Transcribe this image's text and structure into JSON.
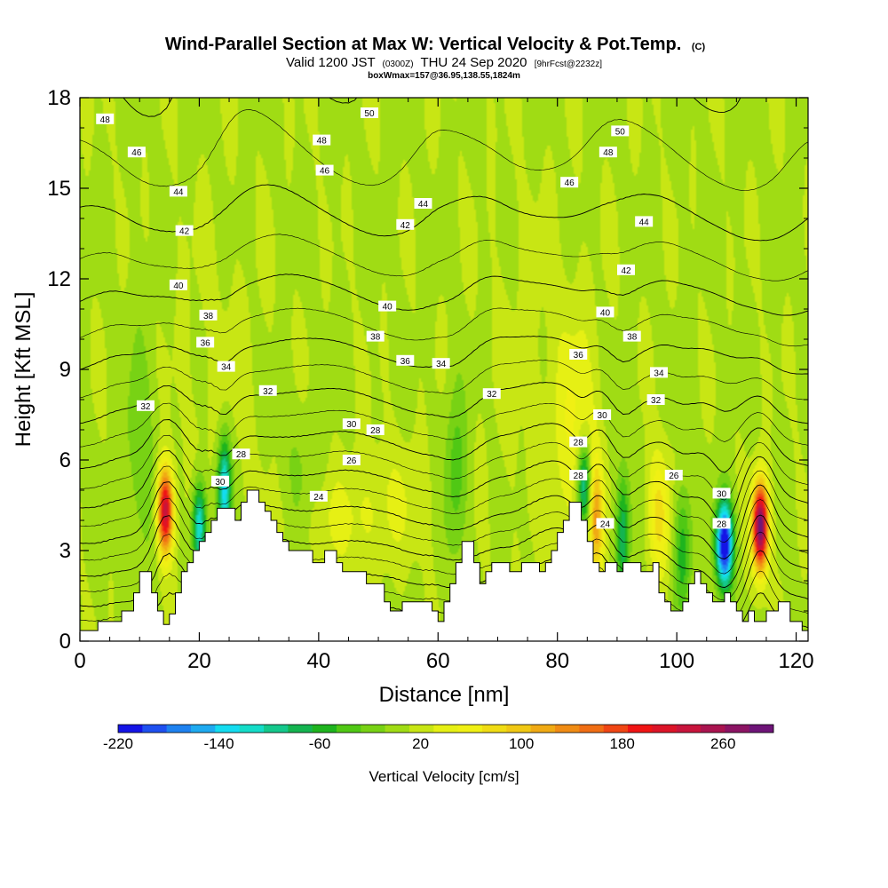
{
  "header": {
    "title": "Wind-Parallel Section at Max W: Vertical Velocity & Pot.Temp.",
    "title_mark": "(C)",
    "subtitle_valid": "Valid 1200 JST",
    "subtitle_utc": "(0300Z)",
    "subtitle_date": "THU 24 Sep 2020",
    "subtitle_fcst": "[9hrFcst@2232z]",
    "subtitle_box": "boxWmax=157@36.95,138.55,1824m"
  },
  "chart_data": {
    "type": "heatmap",
    "xlabel": "Distance [nm]",
    "ylabel": "Height [Kft MSL]",
    "xlim": [
      0,
      122
    ],
    "ylim": [
      0,
      18
    ],
    "x_ticks": [
      0,
      20,
      40,
      60,
      80,
      100,
      120
    ],
    "y_ticks": [
      0,
      3,
      6,
      9,
      12,
      15,
      18
    ],
    "colorbar": {
      "label": "Vertical Velocity [cm/s]",
      "min": -220,
      "max": 300,
      "tick_values": [
        -220,
        -140,
        -60,
        20,
        100,
        180,
        260
      ],
      "tick_labels": [
        "-220",
        "-140",
        "-60",
        "20",
        "100",
        "180",
        "260"
      ],
      "colors": [
        "#1414e6",
        "#1e50f0",
        "#1e82f0",
        "#1eaaf0",
        "#14dcf0",
        "#14dcc8",
        "#14c88c",
        "#14b450",
        "#1eb41e",
        "#50c814",
        "#78d214",
        "#a0dc14",
        "#c8e614",
        "#e6f014",
        "#f0f014",
        "#f0dc14",
        "#f0c814",
        "#f0aa14",
        "#f08c14",
        "#f06e14",
        "#f04614",
        "#f01414",
        "#dc1428",
        "#c8143c",
        "#aa1450",
        "#8c1464",
        "#6e1478"
      ]
    },
    "terrain_kft": [
      [
        0,
        0.35
      ],
      [
        3,
        0.35
      ],
      [
        3,
        0.65
      ],
      [
        7,
        0.65
      ],
      [
        7,
        1.0
      ],
      [
        9,
        1.0
      ],
      [
        9,
        1.6
      ],
      [
        10,
        1.6
      ],
      [
        10,
        2.3
      ],
      [
        12,
        2.3
      ],
      [
        12,
        1.6
      ],
      [
        13,
        1.6
      ],
      [
        13,
        1.0
      ],
      [
        14,
        1.0
      ],
      [
        14,
        0.55
      ],
      [
        15,
        0.55
      ],
      [
        15,
        0.9
      ],
      [
        16,
        0.9
      ],
      [
        16,
        1.6
      ],
      [
        17,
        1.6
      ],
      [
        17,
        2.3
      ],
      [
        18,
        2.3
      ],
      [
        18,
        2.6
      ],
      [
        19,
        2.6
      ],
      [
        19,
        3.0
      ],
      [
        20,
        3.0
      ],
      [
        20,
        3.3
      ],
      [
        21,
        3.3
      ],
      [
        21,
        3.6
      ],
      [
        22,
        3.6
      ],
      [
        22,
        4.0
      ],
      [
        23,
        4.0
      ],
      [
        23,
        4.4
      ],
      [
        26,
        4.4
      ],
      [
        26,
        4.0
      ],
      [
        27,
        4.0
      ],
      [
        27,
        4.6
      ],
      [
        28,
        4.6
      ],
      [
        28,
        5.0
      ],
      [
        30,
        5.0
      ],
      [
        30,
        4.6
      ],
      [
        31,
        4.6
      ],
      [
        31,
        4.3
      ],
      [
        32,
        4.3
      ],
      [
        32,
        4.0
      ],
      [
        33,
        4.0
      ],
      [
        33,
        3.6
      ],
      [
        34,
        3.6
      ],
      [
        34,
        3.3
      ],
      [
        35,
        3.3
      ],
      [
        35,
        3.0
      ],
      [
        39,
        3.0
      ],
      [
        39,
        2.6
      ],
      [
        41,
        2.6
      ],
      [
        41,
        3.0
      ],
      [
        43,
        3.0
      ],
      [
        43,
        2.6
      ],
      [
        44,
        2.6
      ],
      [
        44,
        2.3
      ],
      [
        48,
        2.3
      ],
      [
        48,
        1.9
      ],
      [
        51,
        1.9
      ],
      [
        51,
        1.3
      ],
      [
        52,
        1.3
      ],
      [
        52,
        1.0
      ],
      [
        54,
        1.0
      ],
      [
        54,
        1.3
      ],
      [
        59,
        1.3
      ],
      [
        59,
        1.0
      ],
      [
        60,
        1.0
      ],
      [
        60,
        0.65
      ],
      [
        61,
        0.65
      ],
      [
        61,
        1.3
      ],
      [
        62,
        1.3
      ],
      [
        62,
        1.9
      ],
      [
        63,
        1.9
      ],
      [
        63,
        2.6
      ],
      [
        64,
        2.6
      ],
      [
        64,
        3.3
      ],
      [
        66,
        3.3
      ],
      [
        66,
        2.6
      ],
      [
        67,
        2.6
      ],
      [
        67,
        1.9
      ],
      [
        68,
        1.9
      ],
      [
        68,
        2.3
      ],
      [
        69,
        2.3
      ],
      [
        69,
        2.6
      ],
      [
        72,
        2.6
      ],
      [
        72,
        2.3
      ],
      [
        74,
        2.3
      ],
      [
        74,
        2.6
      ],
      [
        77,
        2.6
      ],
      [
        77,
        2.3
      ],
      [
        78,
        2.3
      ],
      [
        78,
        2.6
      ],
      [
        79,
        2.6
      ],
      [
        79,
        3.0
      ],
      [
        80,
        3.0
      ],
      [
        80,
        3.6
      ],
      [
        81,
        3.6
      ],
      [
        81,
        4.0
      ],
      [
        82,
        4.0
      ],
      [
        82,
        4.6
      ],
      [
        84,
        4.6
      ],
      [
        84,
        4.0
      ],
      [
        85,
        4.0
      ],
      [
        85,
        3.3
      ],
      [
        86,
        3.3
      ],
      [
        86,
        2.6
      ],
      [
        87,
        2.6
      ],
      [
        87,
        2.3
      ],
      [
        88,
        2.3
      ],
      [
        88,
        2.6
      ],
      [
        90,
        2.6
      ],
      [
        90,
        2.3
      ],
      [
        91,
        2.3
      ],
      [
        91,
        2.6
      ],
      [
        94,
        2.6
      ],
      [
        94,
        2.3
      ],
      [
        96,
        2.3
      ],
      [
        96,
        2.6
      ],
      [
        97,
        2.6
      ],
      [
        97,
        1.6
      ],
      [
        98,
        1.6
      ],
      [
        98,
        1.3
      ],
      [
        99,
        1.3
      ],
      [
        99,
        1.0
      ],
      [
        101,
        1.0
      ],
      [
        101,
        1.3
      ],
      [
        102,
        1.3
      ],
      [
        102,
        1.9
      ],
      [
        103,
        1.9
      ],
      [
        103,
        2.3
      ],
      [
        104,
        2.3
      ],
      [
        104,
        1.9
      ],
      [
        105,
        1.9
      ],
      [
        105,
        1.6
      ],
      [
        106,
        1.6
      ],
      [
        106,
        1.3
      ],
      [
        108,
        1.3
      ],
      [
        108,
        1.6
      ],
      [
        109,
        1.6
      ],
      [
        109,
        1.3
      ],
      [
        110,
        1.3
      ],
      [
        110,
        1.0
      ],
      [
        111,
        1.0
      ],
      [
        111,
        0.65
      ],
      [
        112,
        0.65
      ],
      [
        112,
        1.0
      ],
      [
        113,
        1.0
      ],
      [
        113,
        0.65
      ],
      [
        115,
        0.65
      ],
      [
        115,
        1.0
      ],
      [
        117,
        1.0
      ],
      [
        117,
        1.3
      ],
      [
        119,
        1.3
      ],
      [
        119,
        0.65
      ],
      [
        121,
        0.65
      ],
      [
        121,
        0.35
      ],
      [
        122,
        0.35
      ]
    ],
    "updraft_cores": [
      {
        "x": 14.3,
        "y": 4.3,
        "sx": 0.9,
        "sy": 1.0,
        "w": 230
      },
      {
        "x": 114.0,
        "y": 3.8,
        "sx": 0.9,
        "sy": 1.0,
        "w": 290
      },
      {
        "x": 86.5,
        "y": 4.0,
        "sx": 0.8,
        "sy": 1.3,
        "w": 110
      },
      {
        "x": 83.0,
        "y": 7.0,
        "sx": 2.5,
        "sy": 2.5,
        "w": 40
      },
      {
        "x": 97.0,
        "y": 4.2,
        "sx": 1.3,
        "sy": 1.4,
        "w": 70
      },
      {
        "x": 41.0,
        "y": 3.9,
        "sx": 6.0,
        "sy": 1.2,
        "w": 25
      },
      {
        "x": 52.0,
        "y": 4.6,
        "sx": 5.0,
        "sy": 1.4,
        "w": 20
      },
      {
        "x": 76.0,
        "y": 9.0,
        "sx": 6.0,
        "sy": 4.0,
        "w": 8
      },
      {
        "x": 24.0,
        "y": 8.0,
        "sx": 6.0,
        "sy": 4.0,
        "w": 8
      }
    ],
    "downdraft_cores": [
      {
        "x": 108.0,
        "y": 3.2,
        "sx": 1.0,
        "sy": 1.0,
        "w": -240
      },
      {
        "x": 20.0,
        "y": 3.8,
        "sx": 0.8,
        "sy": 1.0,
        "w": -140
      },
      {
        "x": 24.2,
        "y": 5.0,
        "sx": 0.8,
        "sy": 1.2,
        "w": -150
      },
      {
        "x": 84.5,
        "y": 5.2,
        "sx": 0.8,
        "sy": 1.0,
        "w": -120
      },
      {
        "x": 91.0,
        "y": 3.5,
        "sx": 0.8,
        "sy": 1.5,
        "w": -90
      },
      {
        "x": 101.0,
        "y": 3.0,
        "sx": 1.0,
        "sy": 1.5,
        "w": -70
      },
      {
        "x": 63.0,
        "y": 5.5,
        "sx": 1.3,
        "sy": 2.0,
        "w": -50
      },
      {
        "x": 37.0,
        "y": 4.5,
        "sx": 3.0,
        "sy": 2.0,
        "w": -25
      },
      {
        "x": 10.0,
        "y": 6.0,
        "sx": 2.0,
        "sy": 3.0,
        "w": -30
      }
    ],
    "theta_contour_values": [
      22,
      24,
      26,
      28,
      30,
      32,
      34,
      36,
      38,
      40,
      42,
      44,
      46,
      48,
      50
    ],
    "theta_contour_labels": [
      {
        "x": 4.2,
        "y": 17.3,
        "text": "48"
      },
      {
        "x": 48.5,
        "y": 17.5,
        "text": "50"
      },
      {
        "x": 90.5,
        "y": 16.9,
        "text": "50"
      },
      {
        "x": 40.5,
        "y": 16.6,
        "text": "48"
      },
      {
        "x": 9.5,
        "y": 16.2,
        "text": "46"
      },
      {
        "x": 88.5,
        "y": 16.2,
        "text": "48"
      },
      {
        "x": 41.0,
        "y": 15.6,
        "text": "46"
      },
      {
        "x": 82.0,
        "y": 15.2,
        "text": "46"
      },
      {
        "x": 16.5,
        "y": 14.9,
        "text": "44"
      },
      {
        "x": 57.5,
        "y": 14.5,
        "text": "44"
      },
      {
        "x": 94.5,
        "y": 13.9,
        "text": "44"
      },
      {
        "x": 54.5,
        "y": 13.8,
        "text": "42"
      },
      {
        "x": 17.5,
        "y": 13.6,
        "text": "42"
      },
      {
        "x": 91.5,
        "y": 12.3,
        "text": "42"
      },
      {
        "x": 16.5,
        "y": 11.8,
        "text": "40"
      },
      {
        "x": 51.5,
        "y": 11.1,
        "text": "40"
      },
      {
        "x": 88.0,
        "y": 10.9,
        "text": "40"
      },
      {
        "x": 21.5,
        "y": 10.8,
        "text": "38"
      },
      {
        "x": 49.5,
        "y": 10.1,
        "text": "38"
      },
      {
        "x": 92.5,
        "y": 10.1,
        "text": "38"
      },
      {
        "x": 21.0,
        "y": 9.9,
        "text": "36"
      },
      {
        "x": 83.5,
        "y": 9.5,
        "text": "36"
      },
      {
        "x": 54.5,
        "y": 9.3,
        "text": "36"
      },
      {
        "x": 60.5,
        "y": 9.2,
        "text": "34"
      },
      {
        "x": 24.5,
        "y": 9.1,
        "text": "34"
      },
      {
        "x": 97.0,
        "y": 8.9,
        "text": "34"
      },
      {
        "x": 31.5,
        "y": 8.3,
        "text": "32"
      },
      {
        "x": 69.0,
        "y": 8.2,
        "text": "32"
      },
      {
        "x": 96.5,
        "y": 8.0,
        "text": "32"
      },
      {
        "x": 11.0,
        "y": 7.8,
        "text": "32"
      },
      {
        "x": 87.5,
        "y": 7.5,
        "text": "30"
      },
      {
        "x": 45.5,
        "y": 7.2,
        "text": "30"
      },
      {
        "x": 49.5,
        "y": 7.0,
        "text": "28"
      },
      {
        "x": 83.5,
        "y": 6.6,
        "text": "28"
      },
      {
        "x": 27.0,
        "y": 6.2,
        "text": "28"
      },
      {
        "x": 45.5,
        "y": 6.0,
        "text": "26"
      },
      {
        "x": 83.5,
        "y": 5.5,
        "text": "28"
      },
      {
        "x": 99.5,
        "y": 5.5,
        "text": "26"
      },
      {
        "x": 23.5,
        "y": 5.3,
        "text": "30"
      },
      {
        "x": 107.5,
        "y": 4.9,
        "text": "30"
      },
      {
        "x": 40.0,
        "y": 4.8,
        "text": "24"
      },
      {
        "x": 107.5,
        "y": 3.9,
        "text": "28"
      },
      {
        "x": 88.0,
        "y": 3.9,
        "text": "24"
      }
    ]
  }
}
